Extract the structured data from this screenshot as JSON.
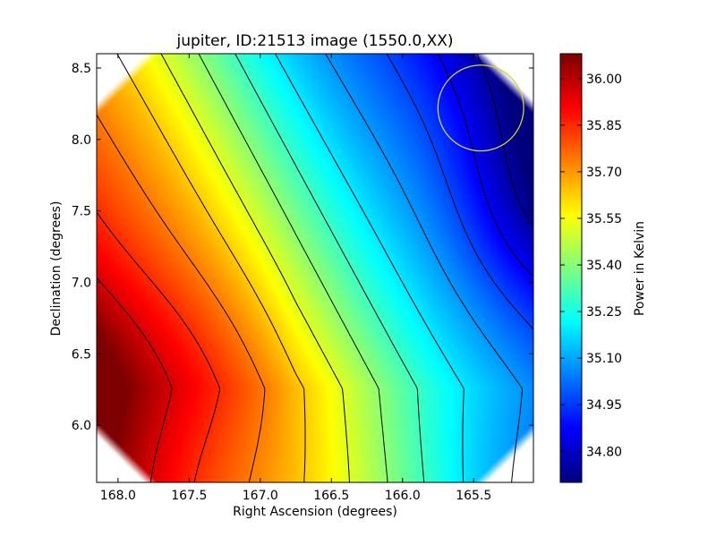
{
  "chart_data": {
    "type": "heatmap",
    "title": "jupiter, ID:21513 image (1550.0,XX)",
    "xlabel": "Right Ascension (degrees)",
    "ylabel": "Declination (degrees)",
    "colorbar_label": "Power in Kelvin",
    "xlim": [
      168.15,
      165.08
    ],
    "ylim": [
      5.6,
      8.6
    ],
    "x_ticks": [
      168.0,
      167.5,
      167.0,
      166.5,
      166.0,
      165.5
    ],
    "x_tick_labels": [
      "168.0",
      "167.5",
      "167.0",
      "166.5",
      "166.0",
      "165.5"
    ],
    "y_ticks": [
      6.0,
      6.5,
      7.0,
      7.5,
      8.0,
      8.5
    ],
    "y_tick_labels": [
      "6.0",
      "6.5",
      "7.0",
      "7.5",
      "8.0",
      "8.5"
    ],
    "colorbar_range": [
      34.7,
      36.08
    ],
    "colorbar_ticks": [
      34.8,
      34.95,
      35.1,
      35.25,
      35.4,
      35.55,
      35.7,
      35.85,
      36.0
    ],
    "colorbar_tick_labels": [
      "34.80",
      "34.95",
      "35.10",
      "35.25",
      "35.40",
      "35.55",
      "35.70",
      "35.85",
      "36.00"
    ],
    "colormap": "jet",
    "field": {
      "max_value": 36.08,
      "max_at": [
        168.2,
        6.55
      ],
      "min_value": 34.7,
      "min_at": [
        165.08,
        7.55
      ],
      "gradient_direction": "decreasing toward upper-right (low RA, high Dec)"
    },
    "contour_levels": [
      34.75,
      34.86,
      34.97,
      35.08,
      35.19,
      35.3,
      35.41,
      35.52,
      35.63,
      35.74,
      35.85,
      35.96
    ],
    "beam_circle": {
      "center": [
        165.45,
        8.22
      ],
      "radius_deg": 0.3,
      "color": "#d4d42a"
    },
    "grid": false,
    "legend": "none"
  }
}
